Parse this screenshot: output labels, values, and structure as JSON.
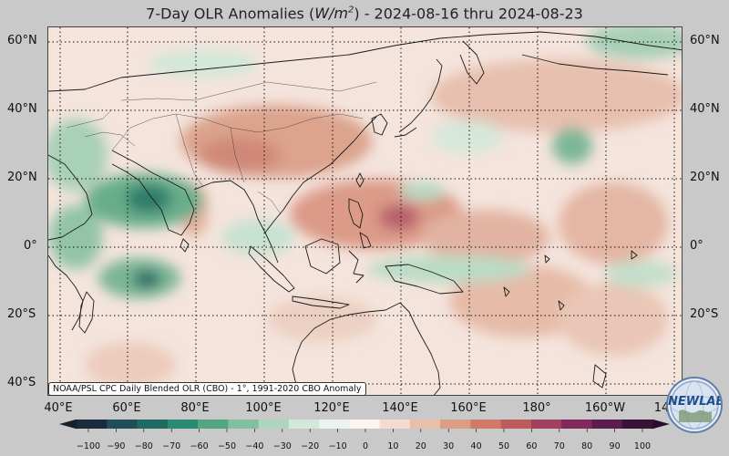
{
  "title": {
    "prefix": "7-Day OLR Anomalies (",
    "unit_base": "W/m",
    "unit_exp": "2",
    "suffix": ") - 2024-08-16 thru 2024-08-23"
  },
  "map": {
    "lat_labels_left": [
      "60°N",
      "40°N",
      "20°N",
      "0°",
      "20°S",
      "40°S"
    ],
    "lat_labels_right": [
      "60°N",
      "40°N",
      "20°N",
      "0°",
      "20°S"
    ],
    "lon_labels": [
      "40°E",
      "60°E",
      "80°E",
      "100°E",
      "120°E",
      "140°E",
      "160°E",
      "180°",
      "160°W",
      "14"
    ],
    "source_note": "NOAA/PSL CPC Daily Blended OLR (CBO) - 1°, 1991-2020 CBO Anomaly"
  },
  "colorbar": {
    "ticks": [
      "−100",
      "−90",
      "−80",
      "−70",
      "−60",
      "−50",
      "−40",
      "−30",
      "−20",
      "−10",
      "0",
      "10",
      "20",
      "30",
      "40",
      "50",
      "60",
      "70",
      "80",
      "90",
      "100"
    ],
    "colors": [
      "#1c2a3d",
      "#1f4d5a",
      "#1d6b63",
      "#2a8a72",
      "#54a584",
      "#82bf9e",
      "#aed5bd",
      "#d3e8da",
      "#ecf3ee",
      "#fbf4f1",
      "#f3dccf",
      "#e8bfa9",
      "#dc9d85",
      "#cf7a68",
      "#bd5a5c",
      "#a13f5f",
      "#7f2a5b",
      "#5b1c4f",
      "#3a1238"
    ]
  },
  "logo": {
    "text": "NEWLAB"
  }
}
